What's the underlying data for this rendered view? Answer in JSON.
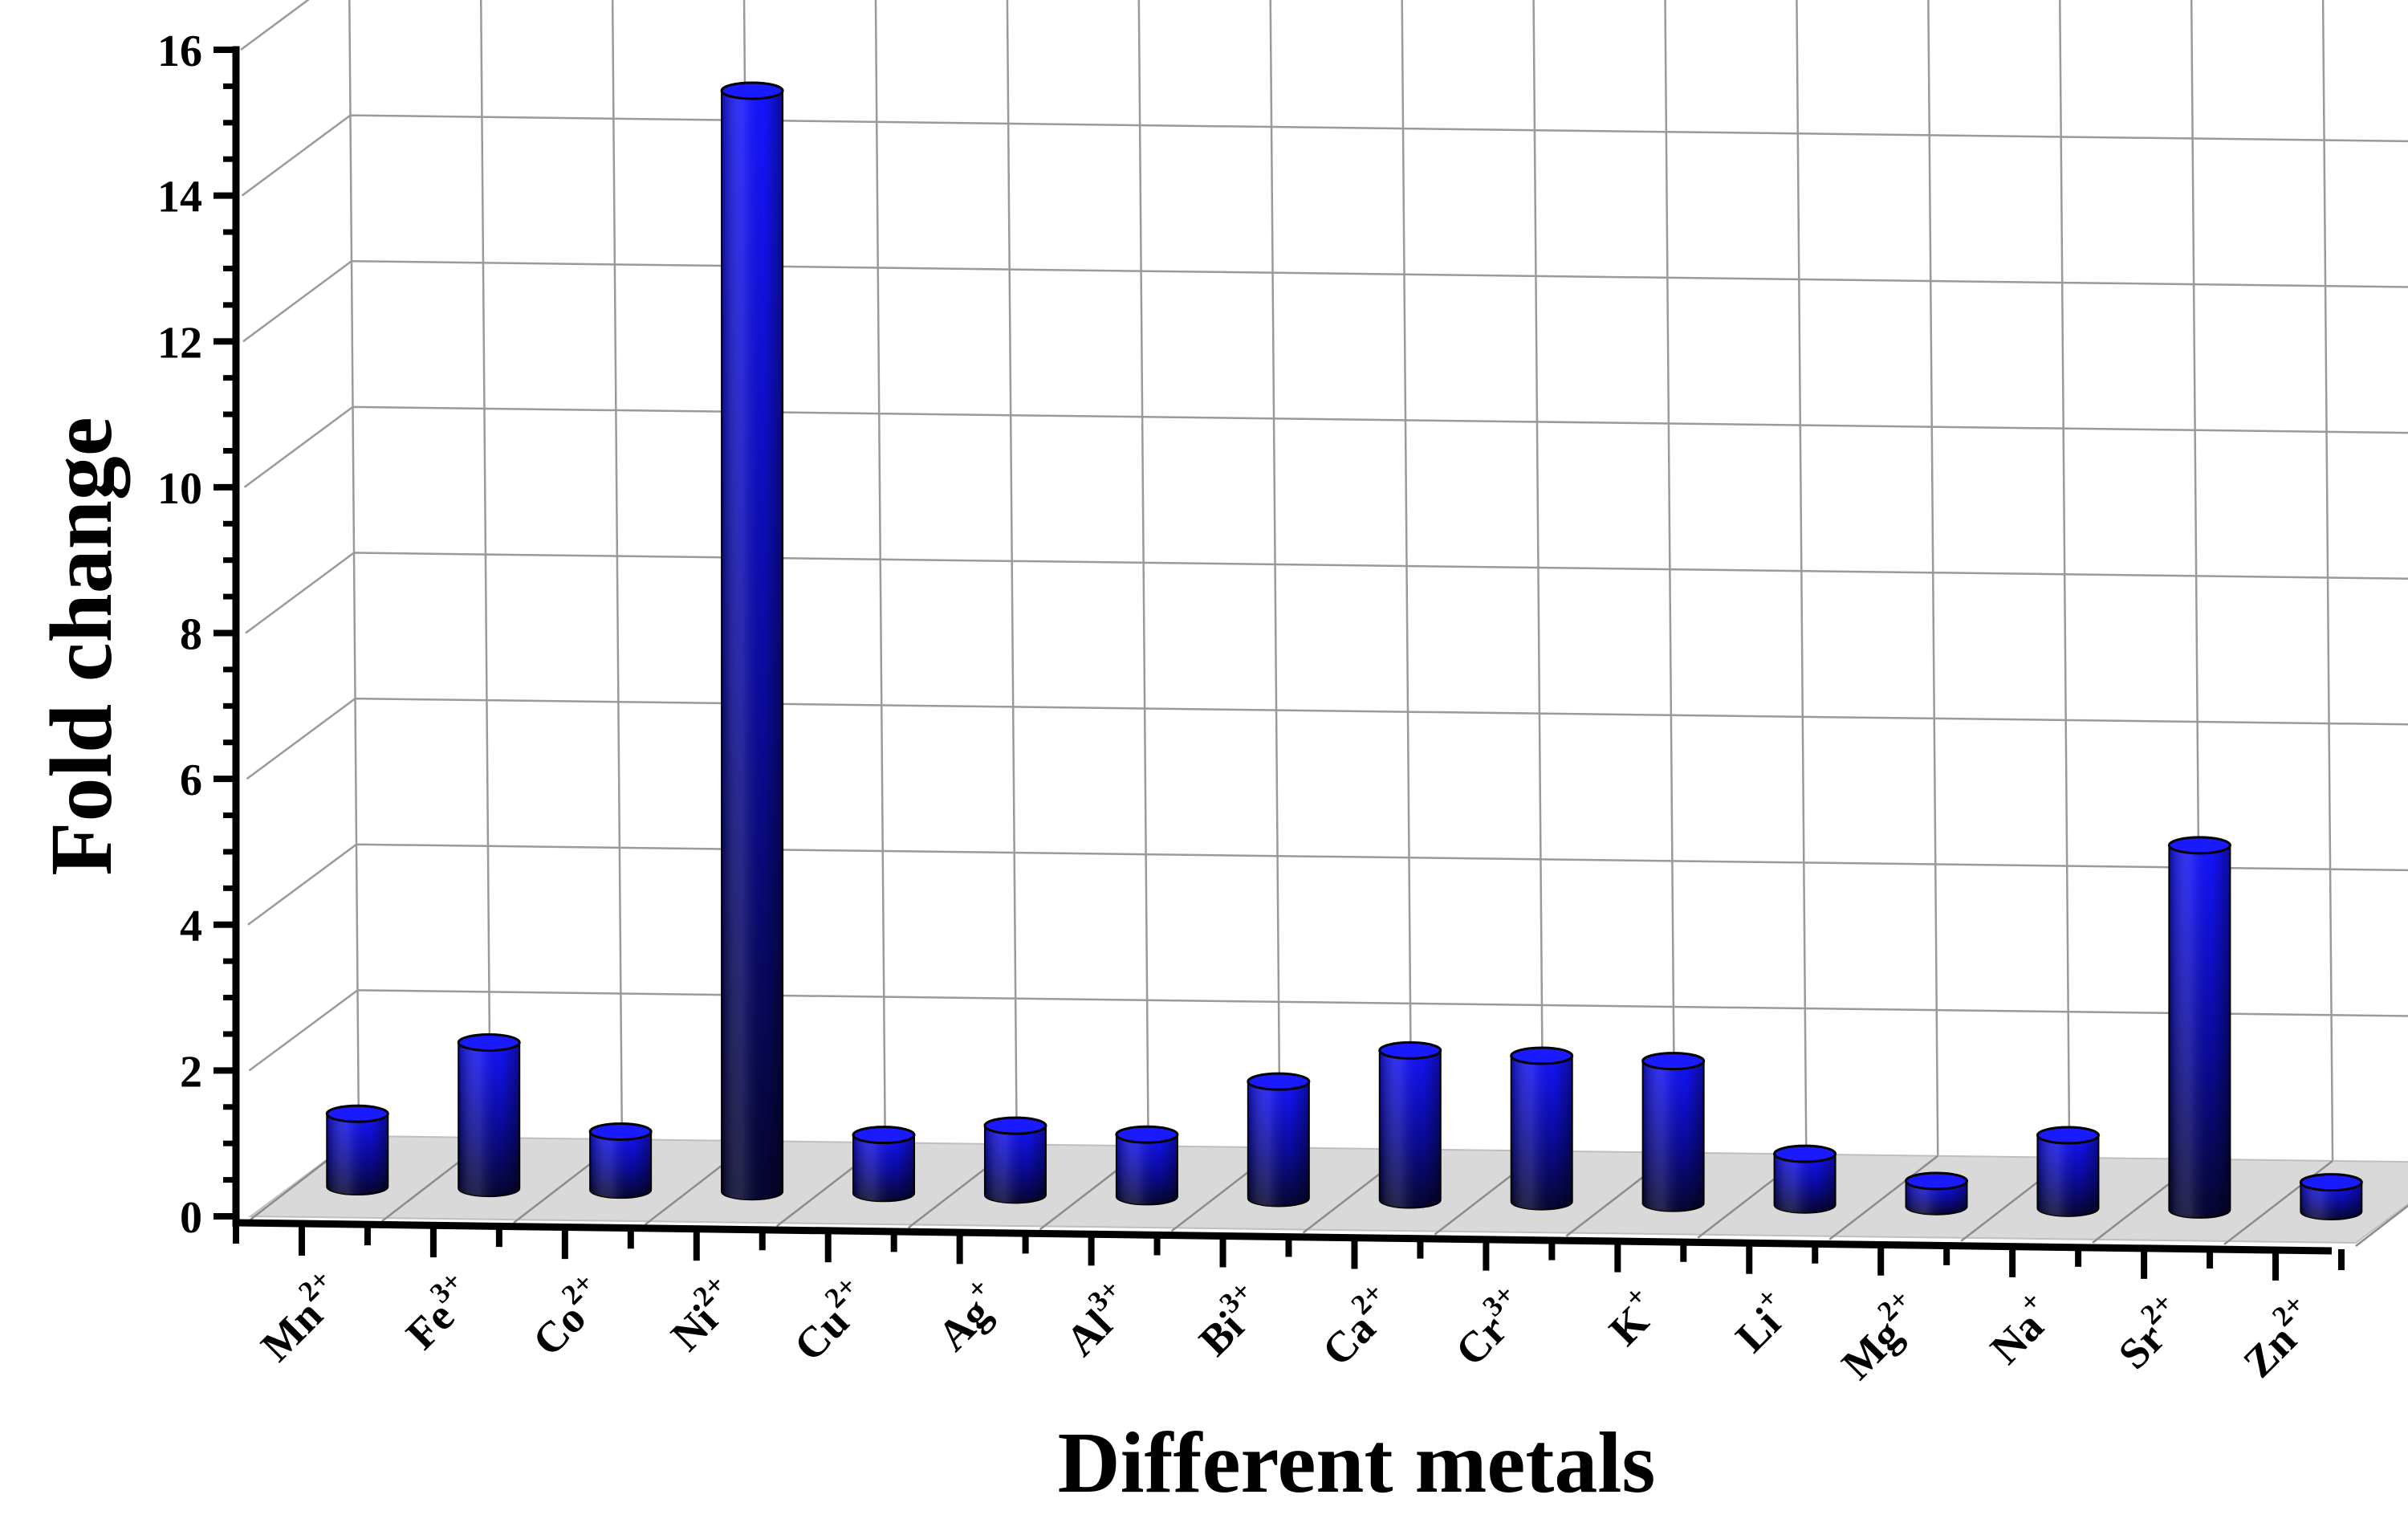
{
  "chart_data": {
    "type": "bar",
    "xlabel": "Different metals",
    "ylabel": "Fold change",
    "ylim": [
      0,
      16
    ],
    "yticks": [
      "0",
      "2",
      "4",
      "6",
      "8",
      "10",
      "12",
      "14",
      "16"
    ],
    "categories": [
      {
        "base": "Mn",
        "sup": "2+"
      },
      {
        "base": "Fe",
        "sup": "3+"
      },
      {
        "base": "Co",
        "sup": "2+"
      },
      {
        "base": "Ni",
        "sup": "2+"
      },
      {
        "base": "Cu",
        "sup": "2+"
      },
      {
        "base": "Ag",
        "sup": "+"
      },
      {
        "base": "Al",
        "sup": "3+"
      },
      {
        "base": "Bi",
        "sup": "3+"
      },
      {
        "base": "Ca",
        "sup": "2+"
      },
      {
        "base": "Cr",
        "sup": "3+"
      },
      {
        "base": "K",
        "sup": "+"
      },
      {
        "base": "Li",
        "sup": "+"
      },
      {
        "base": "Mg",
        "sup": "2+"
      },
      {
        "base": "Na",
        "sup": "+"
      },
      {
        "base": "Sr",
        "sup": "2+"
      },
      {
        "base": "Zn",
        "sup": "2+"
      }
    ],
    "values": [
      1.0,
      2.0,
      0.8,
      15.1,
      0.8,
      0.95,
      0.85,
      1.6,
      2.05,
      2.0,
      1.95,
      0.7,
      0.35,
      1.0,
      5.0,
      0.4
    ],
    "grid": true,
    "bar_color": "#1010ff",
    "bar_dark_color": "#050530",
    "floor_color": "#d9d9d9"
  }
}
